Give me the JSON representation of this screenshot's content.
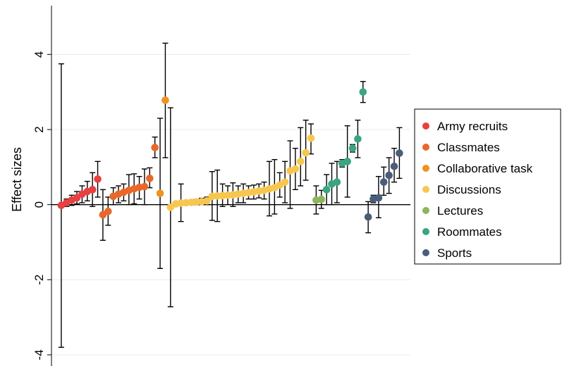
{
  "chart_data": {
    "type": "scatter",
    "title": "",
    "xlabel": "",
    "ylabel": "Effect sizes",
    "ylim": [
      -4.3,
      5.3
    ],
    "yticks": [
      -4,
      -2,
      0,
      2,
      4
    ],
    "ytick_labels": [
      "-4",
      "-2",
      "0",
      "2",
      "4"
    ],
    "grid": true,
    "legend_position": "right",
    "error_bars": true,
    "series": [
      {
        "name": "Army recruits",
        "color": "#e64040",
        "points": [
          {
            "x": 1,
            "y": -0.02,
            "lo": -3.8,
            "hi": 3.75
          },
          {
            "x": 2,
            "y": 0.05,
            "lo": -0.05,
            "hi": 0.15
          },
          {
            "x": 3,
            "y": 0.12,
            "lo": -0.02,
            "hi": 0.25
          },
          {
            "x": 4,
            "y": 0.18,
            "lo": 0.02,
            "hi": 0.35
          },
          {
            "x": 5,
            "y": 0.28,
            "lo": 0.05,
            "hi": 0.5
          },
          {
            "x": 6,
            "y": 0.35,
            "lo": 0.1,
            "hi": 0.62
          },
          {
            "x": 7,
            "y": 0.4,
            "lo": -0.05,
            "hi": 0.85
          },
          {
            "x": 8,
            "y": 0.68,
            "lo": 0.2,
            "hi": 1.15
          }
        ]
      },
      {
        "name": "Classmates",
        "color": "#e8682a",
        "points": [
          {
            "x": 9,
            "y": -0.27,
            "lo": -0.95,
            "hi": 0.4
          },
          {
            "x": 10,
            "y": -0.18,
            "lo": -0.55,
            "hi": 0.2
          },
          {
            "x": 11,
            "y": 0.22,
            "lo": 0.0,
            "hi": 0.45
          },
          {
            "x": 12,
            "y": 0.28,
            "lo": 0.05,
            "hi": 0.5
          },
          {
            "x": 13,
            "y": 0.33,
            "lo": 0.1,
            "hi": 0.55
          },
          {
            "x": 14,
            "y": 0.38,
            "lo": 0.0,
            "hi": 0.8
          },
          {
            "x": 15,
            "y": 0.42,
            "lo": 0.02,
            "hi": 0.82
          },
          {
            "x": 16,
            "y": 0.46,
            "lo": 0.15,
            "hi": 0.75
          },
          {
            "x": 17,
            "y": 0.48,
            "lo": 0.0,
            "hi": 0.95
          },
          {
            "x": 18,
            "y": 0.7,
            "lo": 0.45,
            "hi": 0.98
          },
          {
            "x": 19,
            "y": 1.52,
            "lo": 1.25,
            "hi": 1.8
          }
        ]
      },
      {
        "name": "Collaborative task",
        "color": "#f0921e",
        "points": [
          {
            "x": 20,
            "y": 0.3,
            "lo": -1.7,
            "hi": 2.3
          },
          {
            "x": 21,
            "y": 2.78,
            "lo": 1.25,
            "hi": 4.3
          }
        ]
      },
      {
        "name": "Discussions",
        "color": "#f7c64f",
        "points": [
          {
            "x": 22,
            "y": -0.07,
            "lo": -2.72,
            "hi": 2.58
          },
          {
            "x": 23,
            "y": 0.02,
            "lo": -0.02,
            "hi": 0.06
          },
          {
            "x": 24,
            "y": 0.04,
            "lo": -0.45,
            "hi": 0.55
          },
          {
            "x": 25,
            "y": 0.05,
            "lo": 0.0,
            "hi": 0.1
          },
          {
            "x": 26,
            "y": 0.06,
            "lo": 0.01,
            "hi": 0.11
          },
          {
            "x": 27,
            "y": 0.07,
            "lo": 0.0,
            "hi": 0.14
          },
          {
            "x": 28,
            "y": 0.08,
            "lo": 0.0,
            "hi": 0.17
          },
          {
            "x": 29,
            "y": 0.1,
            "lo": 0.0,
            "hi": 0.2
          },
          {
            "x": 30,
            "y": 0.22,
            "lo": -0.42,
            "hi": 0.88
          },
          {
            "x": 31,
            "y": 0.23,
            "lo": -0.45,
            "hi": 0.92
          },
          {
            "x": 32,
            "y": 0.24,
            "lo": -0.05,
            "hi": 0.55
          },
          {
            "x": 33,
            "y": 0.25,
            "lo": 0.0,
            "hi": 0.5
          },
          {
            "x": 34,
            "y": 0.26,
            "lo": -0.05,
            "hi": 0.58
          },
          {
            "x": 35,
            "y": 0.28,
            "lo": 0.05,
            "hi": 0.5
          },
          {
            "x": 36,
            "y": 0.3,
            "lo": 0.05,
            "hi": 0.55
          },
          {
            "x": 37,
            "y": 0.32,
            "lo": 0.15,
            "hi": 0.5
          },
          {
            "x": 38,
            "y": 0.34,
            "lo": 0.15,
            "hi": 0.52
          },
          {
            "x": 39,
            "y": 0.36,
            "lo": 0.18,
            "hi": 0.55
          },
          {
            "x": 40,
            "y": 0.38,
            "lo": 0.15,
            "hi": 0.6
          },
          {
            "x": 41,
            "y": 0.42,
            "lo": -0.3,
            "hi": 1.15
          },
          {
            "x": 42,
            "y": 0.45,
            "lo": -0.25,
            "hi": 1.2
          },
          {
            "x": 43,
            "y": 0.52,
            "lo": 0.2,
            "hi": 0.85
          },
          {
            "x": 44,
            "y": 0.6,
            "lo": 0.05,
            "hi": 1.15
          },
          {
            "x": 45,
            "y": 0.9,
            "lo": -0.1,
            "hi": 1.7
          },
          {
            "x": 46,
            "y": 0.95,
            "lo": 0.4,
            "hi": 1.5
          },
          {
            "x": 47,
            "y": 1.15,
            "lo": 0.5,
            "hi": 2.05
          },
          {
            "x": 48,
            "y": 1.38,
            "lo": 0.65,
            "hi": 2.25
          },
          {
            "x": 49,
            "y": 1.77,
            "lo": 1.35,
            "hi": 2.15
          }
        ]
      },
      {
        "name": "Lectures",
        "color": "#8db65a",
        "points": [
          {
            "x": 50,
            "y": 0.12,
            "lo": -0.25,
            "hi": 0.5
          },
          {
            "x": 51,
            "y": 0.14,
            "lo": -0.1,
            "hi": 0.38
          }
        ]
      },
      {
        "name": "Roommates",
        "color": "#3aa57e",
        "points": [
          {
            "x": 52,
            "y": 0.4,
            "lo": 0.0,
            "hi": 0.8
          },
          {
            "x": 53,
            "y": 0.55,
            "lo": 0.0,
            "hi": 1.1
          },
          {
            "x": 54,
            "y": 0.6,
            "lo": 0.05,
            "hi": 1.15
          },
          {
            "x": 55,
            "y": 1.1,
            "lo": 1.0,
            "hi": 1.2
          },
          {
            "x": 56,
            "y": 1.15,
            "lo": 0.2,
            "hi": 2.1
          },
          {
            "x": 57,
            "y": 1.5,
            "lo": 1.4,
            "hi": 1.6
          },
          {
            "x": 58,
            "y": 1.75,
            "lo": 1.25,
            "hi": 2.25
          },
          {
            "x": 59,
            "y": 3.0,
            "lo": 2.72,
            "hi": 3.28
          }
        ]
      },
      {
        "name": "Sports",
        "color": "#4a5d7a",
        "points": [
          {
            "x": 60,
            "y": -0.33,
            "lo": -0.75,
            "hi": 0.08
          },
          {
            "x": 61,
            "y": 0.15,
            "lo": 0.05,
            "hi": 0.25
          },
          {
            "x": 62,
            "y": 0.18,
            "lo": -0.35,
            "hi": 0.75
          },
          {
            "x": 63,
            "y": 0.6,
            "lo": 0.25,
            "hi": 1.0
          },
          {
            "x": 64,
            "y": 0.78,
            "lo": 0.3,
            "hi": 1.25
          },
          {
            "x": 65,
            "y": 1.02,
            "lo": 0.6,
            "hi": 1.5
          },
          {
            "x": 66,
            "y": 1.37,
            "lo": 0.7,
            "hi": 2.05
          }
        ]
      }
    ]
  }
}
